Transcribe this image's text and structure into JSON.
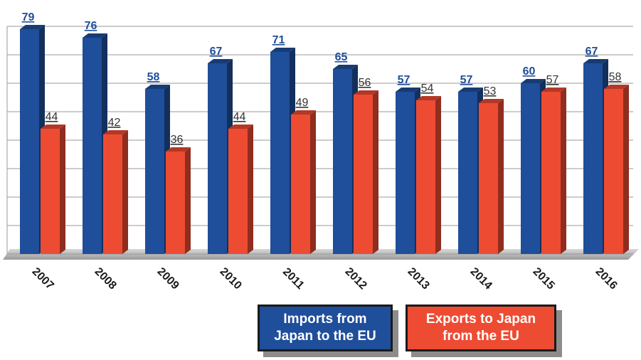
{
  "chart_data": {
    "type": "bar",
    "categories": [
      "2007",
      "2008",
      "2009",
      "2010",
      "2011",
      "2012",
      "2013",
      "2014",
      "2015",
      "2016"
    ],
    "series": [
      {
        "name": "Imports from Japan to the EU",
        "color": "#1f4e9a",
        "values": [
          79,
          76,
          58,
          67,
          71,
          65,
          57,
          57,
          60,
          67
        ]
      },
      {
        "name": "Exports to Japan from the EU",
        "color": "#ee4b33",
        "values": [
          44,
          42,
          36,
          44,
          49,
          56,
          54,
          53,
          57,
          58
        ]
      }
    ],
    "ylim": [
      0,
      80
    ],
    "yticks": [
      0,
      10,
      20,
      30,
      40,
      50,
      60,
      70,
      80
    ],
    "grid": true
  }
}
